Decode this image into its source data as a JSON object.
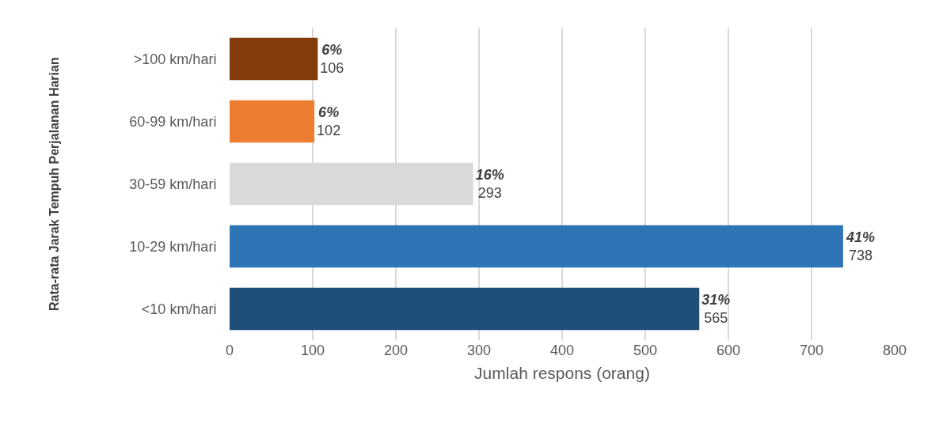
{
  "chart_data": {
    "type": "bar",
    "orientation": "horizontal",
    "categories": [
      ">100 km/hari",
      "60-99 km/hari",
      "30-59 km/hari",
      "10-29 km/hari",
      "<10 km/hari"
    ],
    "values": [
      106,
      102,
      293,
      738,
      565
    ],
    "colors": [
      "#843c0c",
      "#ed7d31",
      "#d9d9d9",
      "#2e75b6",
      "#1f4e79"
    ],
    "value_labels": [
      "6%\n106",
      "6%\n102",
      "16%\n293",
      "41%\n738",
      "31%\n565"
    ],
    "xlabel": "Jumlah respons (orang)",
    "annotations": [
      "Rata-rata Jarak Tempuh Perjalanan Harian"
    ],
    "xlim": [
      0,
      800
    ],
    "xticks": [
      0,
      100,
      200,
      300,
      400,
      500,
      600,
      700,
      800
    ],
    "grid": "x",
    "legend": false
  }
}
